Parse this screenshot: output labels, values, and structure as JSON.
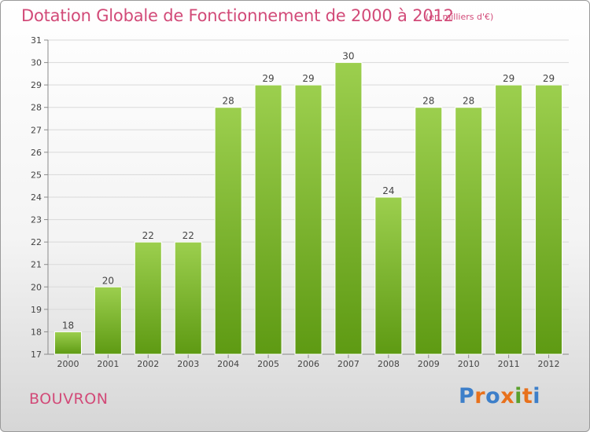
{
  "header": {
    "title": "Dotation Globale de Fonctionnement de 2000 à 2012",
    "unit": "(en milliers d'€)"
  },
  "footer": {
    "commune": "BOUVRON",
    "logo_text": "Proxiti"
  },
  "colors": {
    "title": "#d24a78",
    "bar_top": "#9ccf4e",
    "bar_bottom": "#5e9a13",
    "logo": [
      "#3d7fc9",
      "#e8711c",
      "#3d7fc9",
      "#e8711c",
      "#5aa02c",
      "#e8711c",
      "#3d7fc9"
    ]
  },
  "chart_data": {
    "type": "bar",
    "title": "Dotation Globale de Fonctionnement de 2000 à 2012",
    "subtitle": "(en milliers d'€)",
    "categories": [
      "2000",
      "2001",
      "2002",
      "2003",
      "2004",
      "2005",
      "2006",
      "2007",
      "2008",
      "2009",
      "2010",
      "2011",
      "2012"
    ],
    "values": [
      18,
      20,
      22,
      22,
      28,
      29,
      29,
      30,
      24,
      28,
      28,
      29,
      29
    ],
    "data_labels": [
      "18",
      "20",
      "22",
      "22",
      "28",
      "29",
      "29",
      "30",
      "24",
      "28",
      "28",
      "29",
      "29"
    ],
    "ylim": [
      17,
      31
    ],
    "yticks": [
      "17",
      "18",
      "19",
      "20",
      "21",
      "22",
      "23",
      "24",
      "25",
      "26",
      "27",
      "28",
      "29",
      "30",
      "31"
    ],
    "grid": true,
    "xlabel": "",
    "ylabel": ""
  }
}
